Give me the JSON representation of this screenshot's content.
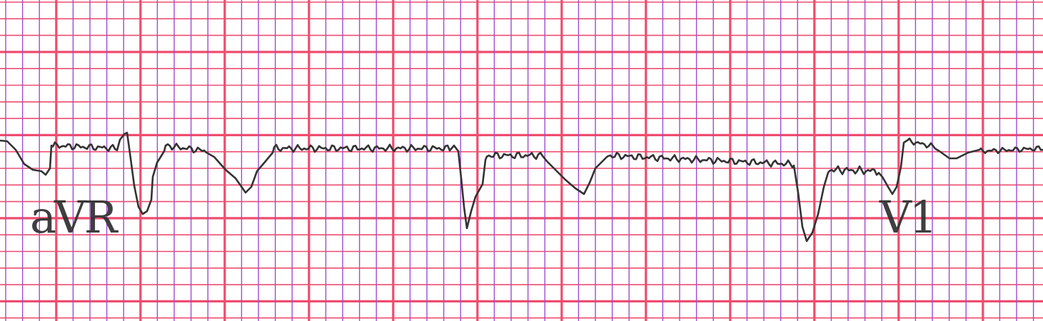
{
  "ecg_strip": {
    "leads": [
      {
        "label": "aVR"
      },
      {
        "label": "V1"
      }
    ]
  },
  "colors": {
    "paper": "#ffffff",
    "minor_grid": "#a24bd0",
    "major_grid": "#ee4d6e",
    "trace": "#333333",
    "label": "#2f2f2f"
  }
}
